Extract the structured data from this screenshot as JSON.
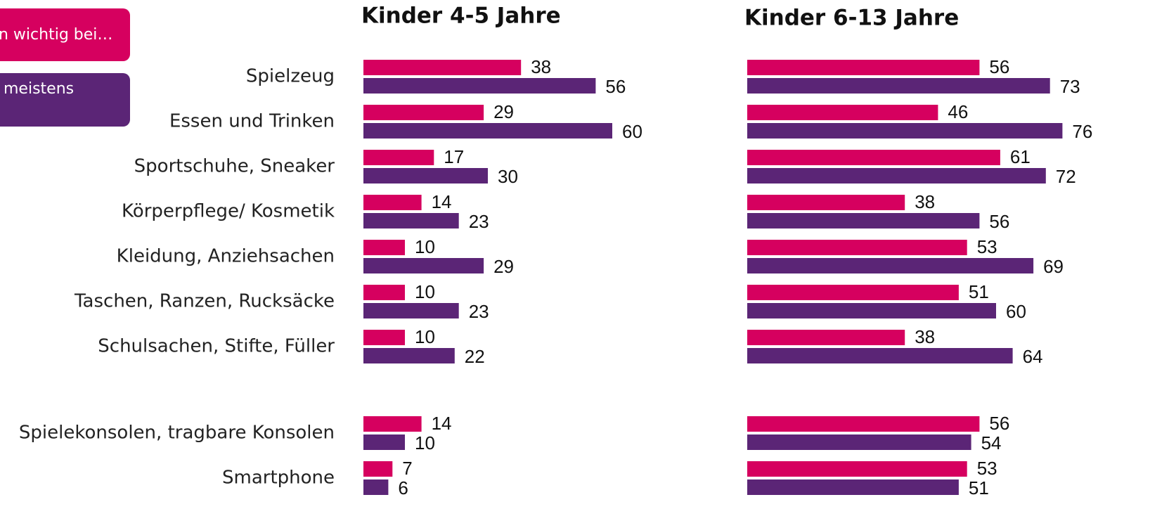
{
  "chart_data": [
    {
      "type": "bar",
      "title": "Kinder 4-5 Jahre",
      "categories": [
        "Spielzeug",
        "Essen und Trinken",
        "Sportschuhe, Sneaker",
        "Körperpflege/ Kosmetik",
        "Kleidung, Anziehsachen",
        "Taschen, Ranzen, Rucksäcke",
        "Schulsachen, Stifte, Füller",
        "Spielekonsolen, tragbare Konsolen",
        "Smartphone"
      ],
      "series": [
        {
          "name": "n wichtig bei…",
          "color": "#d6005f",
          "values": [
            38,
            29,
            17,
            14,
            10,
            10,
            10,
            14,
            7
          ]
        },
        {
          "name": "meistens",
          "color": "#5b2576",
          "values": [
            56,
            60,
            30,
            23,
            29,
            23,
            22,
            10,
            6
          ]
        }
      ]
    },
    {
      "type": "bar",
      "title": "Kinder 6-13 Jahre",
      "series": [
        {
          "color": "#d6005f",
          "values": [
            56,
            46,
            61,
            38,
            53,
            51,
            38,
            56,
            53
          ]
        },
        {
          "color": "#5b2576",
          "values": [
            73,
            76,
            72,
            56,
            69,
            60,
            64,
            54,
            51
          ]
        }
      ]
    }
  ]
}
